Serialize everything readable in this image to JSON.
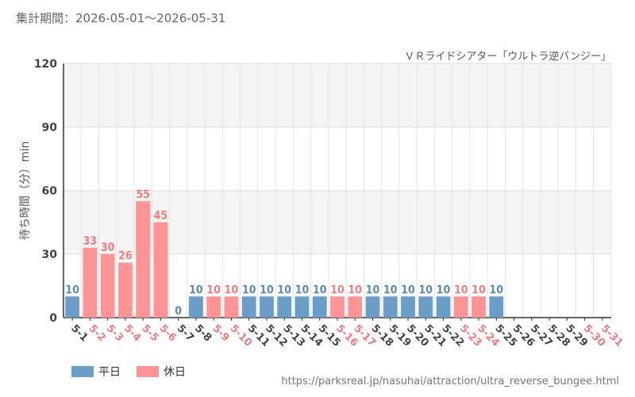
{
  "header": {
    "period_label": "集計期間：2026-05-01～2026-05-31",
    "attraction": "ＶＲライドシアター「ウルトラ逆バンジー」"
  },
  "footer": {
    "url": "https://parksreal.jp/nasuhai/attraction/ultra_reverse_bungee.html"
  },
  "legend": {
    "weekday": "平日",
    "holiday": "休日"
  },
  "colors": {
    "weekday": "#6a9ec9",
    "holiday": "#ff9496",
    "weekday_text": "#5b89b5",
    "holiday_text": "#f07c7e"
  },
  "chart_data": {
    "type": "bar",
    "title": "",
    "ylabel": "待ち時間（分）min",
    "ylim": [
      0,
      120
    ],
    "yticks": [
      0,
      30,
      60,
      90,
      120
    ],
    "categories": [
      "5-1",
      "5-2",
      "5-3",
      "5-4",
      "5-5",
      "5-6",
      "5-7",
      "5-8",
      "5-9",
      "5-10",
      "5-11",
      "5-12",
      "5-13",
      "5-14",
      "5-15",
      "5-16",
      "5-17",
      "5-18",
      "5-19",
      "5-20",
      "5-21",
      "5-22",
      "5-23",
      "5-24",
      "5-25",
      "5-26",
      "5-27",
      "5-28",
      "5-29",
      "5-30",
      "5-31"
    ],
    "values": [
      10,
      33,
      30,
      26,
      55,
      45,
      0,
      10,
      10,
      10,
      10,
      10,
      10,
      10,
      10,
      10,
      10,
      10,
      10,
      10,
      10,
      10,
      10,
      10,
      10,
      null,
      null,
      null,
      null,
      null,
      null
    ],
    "day_type": [
      "weekday",
      "holiday",
      "holiday",
      "holiday",
      "holiday",
      "holiday",
      "weekday",
      "weekday",
      "holiday",
      "holiday",
      "weekday",
      "weekday",
      "weekday",
      "weekday",
      "weekday",
      "holiday",
      "holiday",
      "weekday",
      "weekday",
      "weekday",
      "weekday",
      "weekday",
      "holiday",
      "holiday",
      "weekday",
      "weekday",
      "weekday",
      "weekday",
      "weekday",
      "holiday",
      "holiday"
    ],
    "series": [
      {
        "name": "平日"
      },
      {
        "name": "休日"
      }
    ],
    "grid": true
  }
}
